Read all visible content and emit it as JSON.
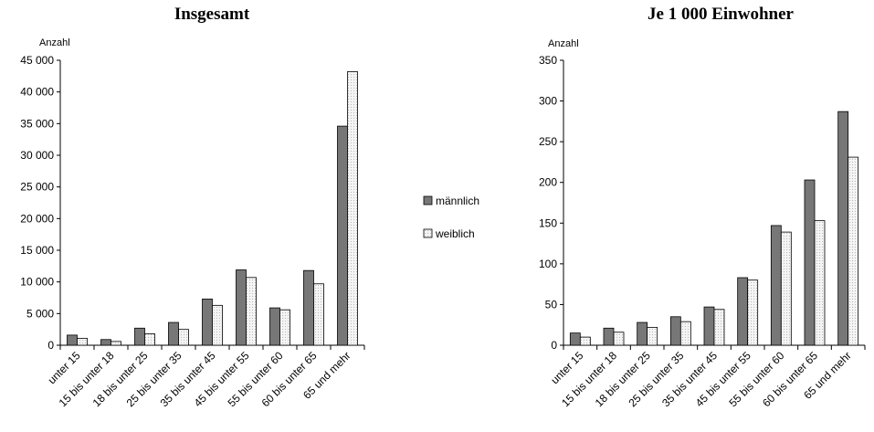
{
  "legend": [
    {
      "label": "männlich",
      "color": "#777777"
    },
    {
      "label": "weiblich",
      "color": "#f2f2f2"
    }
  ],
  "chart_data": [
    {
      "type": "bar",
      "title": "Insgesamt",
      "ylabel": "Anzahl",
      "categories": [
        "unter 15",
        "15 bis unter 18",
        "18 bis unter 25",
        "25 bis unter 35",
        "35 bis unter 45",
        "45 bis unter 55",
        "55 bis unter 60",
        "60 bis unter 65",
        "65 und mehr"
      ],
      "series": [
        {
          "name": "männlich",
          "values": [
            1600,
            900,
            2700,
            3600,
            7300,
            11900,
            5900,
            11800,
            34600
          ]
        },
        {
          "name": "weiblich",
          "values": [
            1100,
            600,
            1800,
            2500,
            6300,
            10700,
            5600,
            9700,
            43200
          ]
        }
      ],
      "ylim": [
        0,
        45000
      ],
      "yticks": [
        "0",
        "5 000",
        "10 000",
        "15 000",
        "20 000",
        "25 000",
        "30 000",
        "35 000",
        "40 000",
        "45 000"
      ],
      "grid": false,
      "legend_position": "right"
    },
    {
      "type": "bar",
      "title": "Je 1 000 Einwohner",
      "ylabel": "Anzahl",
      "categories": [
        "unter 15",
        "15 bis unter 18",
        "18 bis unter 25",
        "25 bis unter 35",
        "35 bis unter 45",
        "45 bis unter 55",
        "55 bis unter 60",
        "60 bis unter 65",
        "65 und mehr"
      ],
      "series": [
        {
          "name": "männlich",
          "values": [
            15,
            21,
            28,
            35,
            47,
            83,
            147,
            203,
            287
          ]
        },
        {
          "name": "weiblich",
          "values": [
            10,
            16,
            22,
            29,
            44,
            80,
            139,
            153,
            231
          ]
        }
      ],
      "ylim": [
        0,
        350
      ],
      "yticks": [
        "0",
        "50",
        "100",
        "150",
        "200",
        "250",
        "300",
        "350"
      ],
      "grid": false,
      "legend_position": "left"
    }
  ]
}
